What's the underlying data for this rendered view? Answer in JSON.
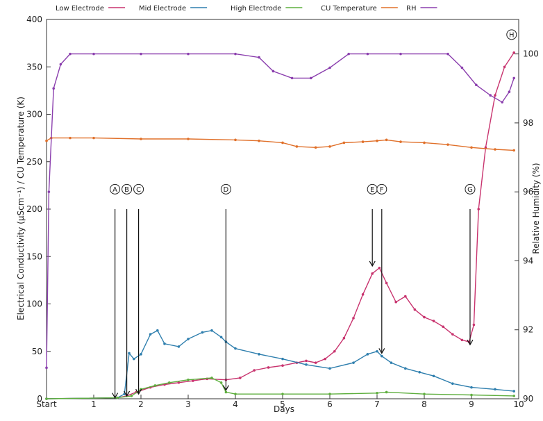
{
  "chart_data": {
    "type": "line",
    "title": "",
    "xlabel": "Days",
    "ylabel_left": "Electrical Conductivity (μScm⁻¹) / CU Temperature (K)",
    "ylabel_right": "Relative Humidity (%)",
    "xlim": [
      0,
      10
    ],
    "ylim_left": [
      0,
      400
    ],
    "ylim_right": [
      90,
      101
    ],
    "grid": false,
    "legend_position": "top",
    "x_ticks": [
      {
        "value": 0,
        "label": "Start"
      },
      {
        "value": 1,
        "label": "1"
      },
      {
        "value": 2,
        "label": "2"
      },
      {
        "value": 3,
        "label": "3"
      },
      {
        "value": 4,
        "label": "4"
      },
      {
        "value": 5,
        "label": "5"
      },
      {
        "value": 6,
        "label": "6"
      },
      {
        "value": 7,
        "label": "7"
      },
      {
        "value": 8,
        "label": "8"
      },
      {
        "value": 9,
        "label": "9"
      },
      {
        "value": 10,
        "label": "10"
      }
    ],
    "y_ticks_left": [
      0,
      50,
      100,
      150,
      200,
      250,
      300,
      350,
      400
    ],
    "y_ticks_right": [
      90,
      92,
      94,
      96,
      98,
      100
    ],
    "series": [
      {
        "name": "Low Electrode",
        "color": "#c8336e",
        "axis": "left",
        "x": [
          0,
          1.5,
          1.7,
          1.9,
          2.2,
          2.5,
          2.8,
          3.1,
          3.4,
          3.8,
          4.1,
          4.4,
          4.7,
          5.0,
          5.3,
          5.5,
          5.7,
          5.9,
          6.1,
          6.3,
          6.5,
          6.7,
          6.9,
          7.05,
          7.2,
          7.4,
          7.6,
          7.8,
          8.0,
          8.2,
          8.4,
          8.6,
          8.8,
          8.95,
          9.05,
          9.15,
          9.3,
          9.5,
          9.7,
          9.9
        ],
        "y": [
          0,
          1,
          3,
          7,
          12,
          15,
          17,
          19,
          21,
          20,
          22,
          30,
          33,
          35,
          38,
          40,
          38,
          42,
          50,
          64,
          85,
          110,
          132,
          138,
          122,
          102,
          108,
          94,
          86,
          82,
          76,
          68,
          62,
          60,
          78,
          200,
          265,
          320,
          350,
          365
        ]
      },
      {
        "name": "Mid Electrode",
        "color": "#2f7fae",
        "axis": "left",
        "x": [
          0,
          1.5,
          1.65,
          1.75,
          1.85,
          2.0,
          2.2,
          2.35,
          2.5,
          2.8,
          3.0,
          3.3,
          3.5,
          3.7,
          3.8,
          4.0,
          4.5,
          5.0,
          5.5,
          6.0,
          6.5,
          6.8,
          7.0,
          7.1,
          7.3,
          7.6,
          7.9,
          8.2,
          8.6,
          9.0,
          9.5,
          9.9
        ],
        "y": [
          0,
          1,
          5,
          48,
          42,
          47,
          68,
          72,
          58,
          55,
          63,
          70,
          72,
          65,
          60,
          53,
          47,
          42,
          36,
          32,
          38,
          47,
          50,
          45,
          38,
          32,
          28,
          24,
          16,
          12,
          10,
          8
        ]
      },
      {
        "name": "High Electrode",
        "color": "#5faf3f",
        "axis": "left",
        "x": [
          0,
          1.5,
          1.8,
          2.0,
          2.3,
          2.6,
          3.0,
          3.5,
          3.7,
          3.8,
          4.0,
          5.0,
          6.0,
          7.0,
          7.2,
          8.0,
          9.0,
          9.9
        ],
        "y": [
          0,
          1,
          3,
          10,
          14,
          17,
          20,
          22,
          17,
          7,
          5,
          5,
          5,
          6,
          7,
          5,
          4,
          3
        ]
      },
      {
        "name": "CU Temperature",
        "color": "#e0702a",
        "axis": "left",
        "x": [
          0,
          0.1,
          0.5,
          1.0,
          2.0,
          3.0,
          4.0,
          4.5,
          5.0,
          5.3,
          5.7,
          6.0,
          6.3,
          6.7,
          7.0,
          7.2,
          7.5,
          8.0,
          8.5,
          9.0,
          9.5,
          9.9
        ],
        "y": [
          272,
          275,
          275,
          275,
          274,
          274,
          273,
          272,
          270,
          266,
          265,
          266,
          270,
          271,
          272,
          273,
          271,
          270,
          268,
          265,
          263,
          262
        ]
      },
      {
        "name": "RH",
        "color": "#8b3fae",
        "axis": "right",
        "x": [
          0,
          0.05,
          0.15,
          0.3,
          0.5,
          1.0,
          2.0,
          3.0,
          4.0,
          4.5,
          4.8,
          5.2,
          5.6,
          6.0,
          6.4,
          6.8,
          7.5,
          8.5,
          8.8,
          9.1,
          9.4,
          9.65,
          9.8,
          9.9
        ],
        "y": [
          90.9,
          96.0,
          99.0,
          99.7,
          100.0,
          100.0,
          100.0,
          100.0,
          100.0,
          99.9,
          99.5,
          99.3,
          99.3,
          99.6,
          100.0,
          100.0,
          100.0,
          100.0,
          99.6,
          99.1,
          98.8,
          98.6,
          98.9,
          99.3
        ]
      }
    ],
    "annotations": [
      {
        "label": "A",
        "x": 1.45,
        "y_label": 221,
        "y_from": 200,
        "y_to": 1
      },
      {
        "label": "B",
        "x": 1.7,
        "y_label": 221,
        "y_from": 200,
        "y_to": 3
      },
      {
        "label": "C",
        "x": 1.95,
        "y_label": 221,
        "y_from": 200,
        "y_to": 5
      },
      {
        "label": "D",
        "x": 3.8,
        "y_label": 221,
        "y_from": 200,
        "y_to": 9
      },
      {
        "label": "E",
        "x": 6.9,
        "y_label": 221,
        "y_from": 200,
        "y_to": 140
      },
      {
        "label": "F",
        "x": 7.1,
        "y_label": 221,
        "y_from": 200,
        "y_to": 48
      },
      {
        "label": "G",
        "x": 8.97,
        "y_label": 221,
        "y_from": 200,
        "y_to": 57
      },
      {
        "label": "H",
        "x": 9.85,
        "y_label": 384
      }
    ]
  }
}
